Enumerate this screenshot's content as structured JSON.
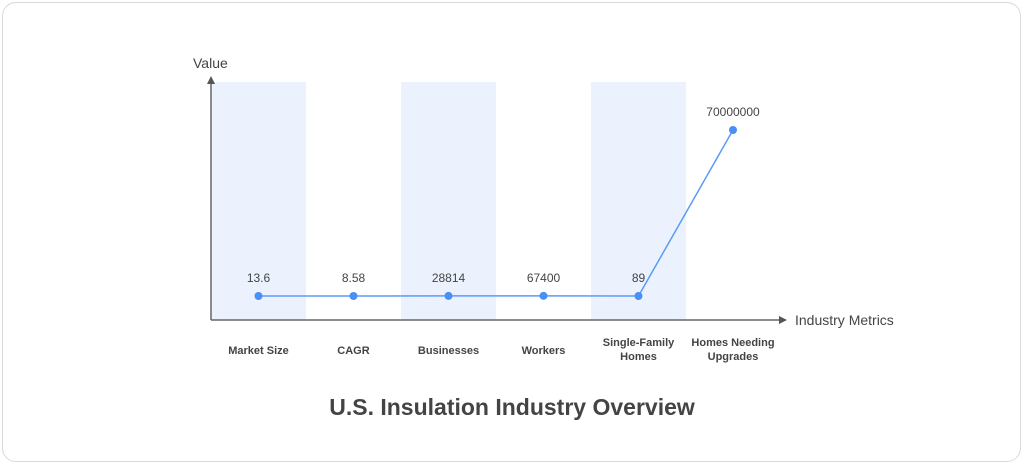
{
  "chart_data": {
    "type": "line",
    "title": "U.S. Insulation Industry Overview",
    "xlabel": "Industry Metrics",
    "ylabel": "Value",
    "categories": [
      "Market Size",
      "CAGR",
      "Businesses",
      "Workers",
      "Single-Family Homes",
      "Homes Needing Upgrades"
    ],
    "values": [
      13.6,
      8.58,
      28814,
      67400,
      89,
      70000000
    ],
    "data_labels": [
      "13.6",
      "8.58",
      "28814",
      "67400",
      "89",
      "70000000"
    ],
    "ylim": [
      0,
      70000000
    ],
    "grid": false,
    "alternating_bands": true,
    "colors": {
      "line": "#5b9bf8",
      "point": "#4a8ff5",
      "band": "#ebf2fe",
      "axis": "#666666",
      "text": "#444444"
    }
  }
}
